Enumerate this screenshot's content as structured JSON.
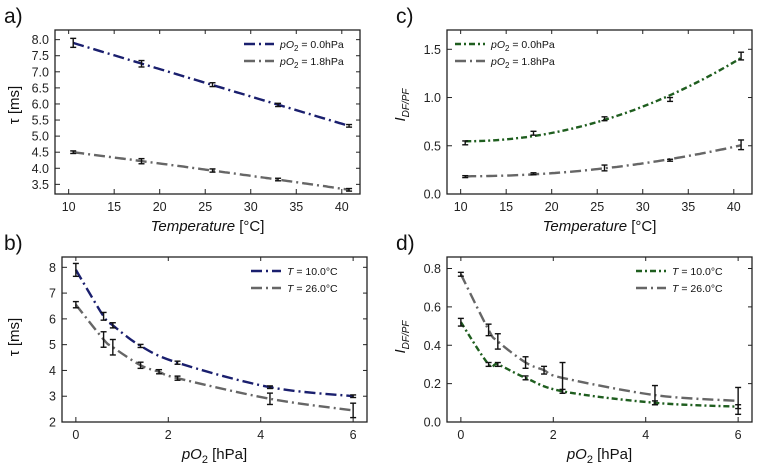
{
  "colors": {
    "navy": "#1a1f6e",
    "gray": "#666666",
    "green": "#1f5e1f",
    "err": "#111111",
    "frame": "#222222"
  },
  "chart_data": [
    {
      "panel": "a)",
      "type": "line",
      "xlabel_italic": "Temperature",
      "xlabel_rest": " [°C]",
      "ylabel": "τ [ms]",
      "xlim": [
        8.5,
        42
      ],
      "ylim": [
        3.2,
        8.3
      ],
      "xticks": [
        10,
        15,
        20,
        25,
        30,
        35,
        40
      ],
      "yticks": [
        3.5,
        4.0,
        4.5,
        5.0,
        5.5,
        6.0,
        6.5,
        7.0,
        7.5,
        8.0
      ],
      "ytick_labels": [
        "3.5",
        "4.0",
        "4.5",
        "5.0",
        "5.5",
        "6.0",
        "6.5",
        "7.0",
        "7.5",
        "8.0"
      ],
      "legend": "top-right",
      "series": [
        {
          "name": "pO2 = 0.0hPa",
          "legend_prefix": "pO",
          "legend_sub": "2",
          "legend_suffix": " = 0.0hPa",
          "color": "navy",
          "points": [
            [
              10.5,
              7.9,
              0.14
            ],
            [
              18,
              7.25,
              0.1
            ],
            [
              25.8,
              6.6,
              0.06
            ],
            [
              33,
              5.97,
              0.05
            ],
            [
              40.8,
              5.32,
              0.04
            ]
          ]
        },
        {
          "name": "pO2 = 1.8hPa",
          "legend_prefix": "pO",
          "legend_sub": "2",
          "legend_suffix": " = 1.8hPa",
          "color": "gray",
          "points": [
            [
              10.5,
              4.5,
              0.04
            ],
            [
              18,
              4.22,
              0.08
            ],
            [
              25.8,
              3.93,
              0.05
            ],
            [
              33,
              3.65,
              0.04
            ],
            [
              40.8,
              3.33,
              0.04
            ]
          ]
        }
      ]
    },
    {
      "panel": "c)",
      "type": "line",
      "xlabel_italic": "Temperature",
      "xlabel_rest": " [°C]",
      "ylabel": "I",
      "ylabel_sub": "DF/PF",
      "xlim": [
        8.5,
        42
      ],
      "ylim": [
        0,
        1.7
      ],
      "xticks": [
        10,
        15,
        20,
        25,
        30,
        35,
        40
      ],
      "yticks": [
        0,
        0.5,
        1.0,
        1.5
      ],
      "ytick_labels": [
        "0.0",
        "0.5",
        "1.0",
        "1.5"
      ],
      "legend": "top-left",
      "series": [
        {
          "name": "pO2 = 0.0hPa",
          "legend_prefix": "pO",
          "legend_sub": "2",
          "legend_suffix": " = 0.0hPa",
          "color": "green",
          "points": [
            [
              10.5,
              0.53,
              0.02
            ],
            [
              18,
              0.63,
              0.02
            ],
            [
              25.8,
              0.78,
              0.02
            ],
            [
              33,
              0.98,
              0.02
            ],
            [
              40.8,
              1.43,
              0.04
            ]
          ]
        },
        {
          "name": "pO2 = 1.8hPa",
          "legend_prefix": "pO",
          "legend_sub": "2",
          "legend_suffix": " = 1.8hPa",
          "color": "gray",
          "points": [
            [
              10.5,
              0.18,
              0.01
            ],
            [
              18,
              0.21,
              0.01
            ],
            [
              25.8,
              0.27,
              0.03
            ],
            [
              33,
              0.35,
              0.01
            ],
            [
              40.8,
              0.51,
              0.05
            ]
          ]
        }
      ]
    },
    {
      "panel": "b)",
      "type": "line",
      "xlabel_italic": "pO",
      "xlabel_sub": "2",
      "xlabel_rest": " [hPa]",
      "ylabel": "τ [ms]",
      "xlim": [
        -0.3,
        6.3
      ],
      "ylim": [
        2,
        8.4
      ],
      "xticks": [
        0,
        2,
        4,
        6
      ],
      "yticks": [
        2,
        3,
        4,
        5,
        6,
        7,
        8
      ],
      "ytick_labels": [
        "2",
        "3",
        "4",
        "5",
        "6",
        "7",
        "8"
      ],
      "legend": "top-right",
      "series": [
        {
          "name": "T = 10.0°C",
          "legend_prefix": "T",
          "legend_suffix": " = 10.0°C",
          "color": "navy",
          "points": [
            [
              0,
              7.9,
              0.25
            ],
            [
              0.6,
              6.1,
              0.15
            ],
            [
              0.8,
              5.75,
              0.1
            ],
            [
              1.4,
              4.95,
              0.06
            ],
            [
              2.2,
              4.3,
              0.06
            ],
            [
              4.2,
              3.35,
              0.05
            ],
            [
              6,
              3.0,
              0.05
            ]
          ]
        },
        {
          "name": "T = 26.0°C",
          "legend_prefix": "T",
          "legend_sub": "",
          "legend_suffix": " = 26.0°C",
          "color": "gray",
          "points": [
            [
              0,
              6.55,
              0.12
            ],
            [
              0.6,
              5.2,
              0.3
            ],
            [
              0.8,
              4.9,
              0.3
            ],
            [
              1.4,
              4.2,
              0.12
            ],
            [
              1.8,
              3.95,
              0.08
            ],
            [
              2.2,
              3.7,
              0.08
            ],
            [
              4.2,
              2.9,
              0.22
            ],
            [
              6,
              2.45,
              0.28
            ]
          ]
        }
      ]
    },
    {
      "panel": "d)",
      "type": "line",
      "xlabel_italic": "pO",
      "xlabel_sub": "2",
      "xlabel_rest": " [hPa]",
      "ylabel": "I",
      "ylabel_sub": "DF/PF",
      "xlim": [
        -0.3,
        6.3
      ],
      "ylim": [
        0,
        0.86
      ],
      "xticks": [
        0,
        2,
        4,
        6
      ],
      "yticks": [
        0,
        0.2,
        0.4,
        0.6,
        0.8
      ],
      "ytick_labels": [
        "0.0",
        "0.2",
        "0.4",
        "0.6",
        "0.8"
      ],
      "legend": "top-right",
      "series": [
        {
          "name": "T = 10.0°C",
          "legend_prefix": "T",
          "legend_suffix": " = 10.0°C",
          "color": "green",
          "points": [
            [
              0,
              0.52,
              0.02
            ],
            [
              0.6,
              0.3,
              0.01
            ],
            [
              0.8,
              0.3,
              0.01
            ],
            [
              1.4,
              0.23,
              0.01
            ],
            [
              2.2,
              0.16,
              0.01
            ],
            [
              4.2,
              0.1,
              0.01
            ],
            [
              6,
              0.08,
              0.01
            ]
          ]
        },
        {
          "name": "T = 26.0°C",
          "legend_prefix": "T",
          "legend_suffix": " = 26.0°C",
          "color": "gray",
          "points": [
            [
              0,
              0.77,
              0.01
            ],
            [
              0.6,
              0.48,
              0.03
            ],
            [
              0.8,
              0.42,
              0.04
            ],
            [
              1.4,
              0.31,
              0.03
            ],
            [
              1.8,
              0.27,
              0.02
            ],
            [
              2.2,
              0.23,
              0.08
            ],
            [
              4.2,
              0.14,
              0.05
            ],
            [
              6,
              0.11,
              0.07
            ]
          ]
        }
      ]
    }
  ]
}
